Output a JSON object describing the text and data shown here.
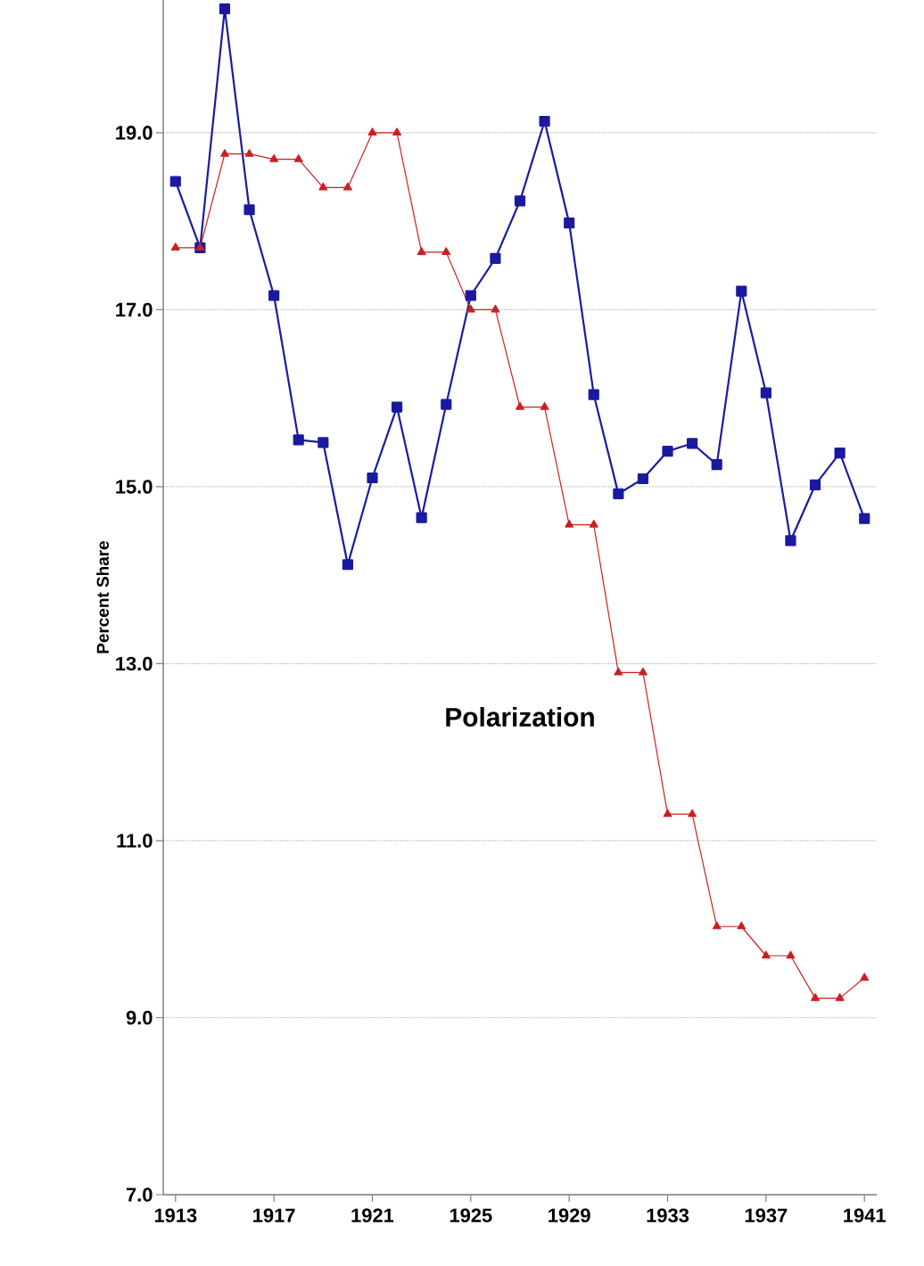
{
  "chart_data": {
    "type": "line",
    "ylabel": "Percent Share",
    "x": [
      1913,
      1914,
      1915,
      1916,
      1917,
      1918,
      1919,
      1920,
      1921,
      1922,
      1923,
      1924,
      1925,
      1926,
      1927,
      1928,
      1929,
      1930,
      1931,
      1932,
      1933,
      1934,
      1935,
      1936,
      1937,
      1938,
      1939,
      1940,
      1941
    ],
    "series": [
      {
        "color": "#1a1aa0",
        "marker": "square",
        "values": [
          18.45,
          17.7,
          20.4,
          18.13,
          17.16,
          15.53,
          15.5,
          14.12,
          15.1,
          15.9,
          14.65,
          15.93,
          17.16,
          17.58,
          18.23,
          19.13,
          17.98,
          16.04,
          14.92,
          15.09,
          15.4,
          15.49,
          15.25,
          17.21,
          16.06,
          14.39,
          15.02,
          15.38,
          14.64
        ]
      },
      {
        "color": "#cc2020",
        "marker": "triangle",
        "values": [
          17.7,
          17.7,
          18.76,
          18.76,
          18.7,
          18.7,
          18.38,
          18.38,
          19.0,
          19.0,
          17.65,
          17.65,
          17.0,
          17.0,
          15.9,
          15.9,
          14.57,
          14.57,
          12.9,
          12.9,
          11.3,
          11.3,
          10.03,
          10.03,
          9.7,
          9.7,
          9.22,
          9.22,
          9.45
        ]
      }
    ],
    "xlim": [
      1912.5,
      1941.5
    ],
    "xticks": [
      1913,
      1917,
      1921,
      1925,
      1929,
      1933,
      1937,
      1941
    ],
    "ylim": [
      7,
      20.5
    ],
    "yticks": [
      {
        "value": 7,
        "label": "7.0"
      },
      {
        "value": 9,
        "label": "9.0"
      },
      {
        "value": 11,
        "label": "11.0"
      },
      {
        "value": 13,
        "label": "13.0"
      },
      {
        "value": 15,
        "label": "15.0"
      },
      {
        "value": 17,
        "label": "17.0"
      },
      {
        "value": 19,
        "label": "19.0"
      }
    ],
    "grid": "y",
    "line_style": "solid",
    "annotations": [
      "Polarization"
    ]
  }
}
